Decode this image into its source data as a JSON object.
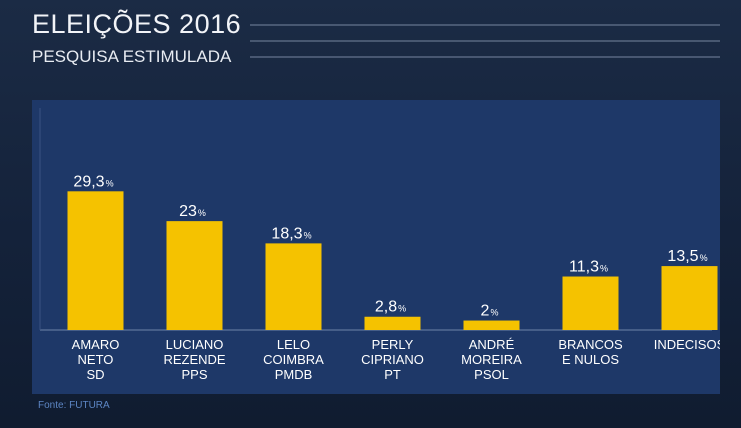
{
  "header": {
    "title": "ELEIÇÕES 2016",
    "subtitle": "PESQUISA ESTIMULADA"
  },
  "footer": {
    "source": "Fonte: FUTURA"
  },
  "colors": {
    "bar": "#f5c200",
    "panel": "#1e3868",
    "background": "#15233a",
    "source_text": "#5c86c4"
  },
  "chart_data": {
    "type": "bar",
    "title": "PESQUISA ESTIMULADA",
    "categories": [
      [
        "AMARO",
        "NETO",
        "SD"
      ],
      [
        "LUCIANO",
        "REZENDE",
        "PPS"
      ],
      [
        "LELO",
        "COIMBRA",
        "PMDB"
      ],
      [
        "PERLY",
        "CIPRIANO",
        "PT"
      ],
      [
        "ANDRÉ",
        "MOREIRA",
        "PSOL"
      ],
      [
        "BRANCOS",
        "E NULOS"
      ],
      [
        "INDECISOS"
      ]
    ],
    "values": [
      29.3,
      23,
      18.3,
      2.8,
      2,
      11.3,
      13.5
    ],
    "value_labels": [
      "29,3",
      "23",
      "18,3",
      "2,8",
      "2",
      "11,3",
      "13,5"
    ],
    "unit": "%",
    "ylim": [
      0,
      30
    ],
    "xlabel": "",
    "ylabel": ""
  }
}
